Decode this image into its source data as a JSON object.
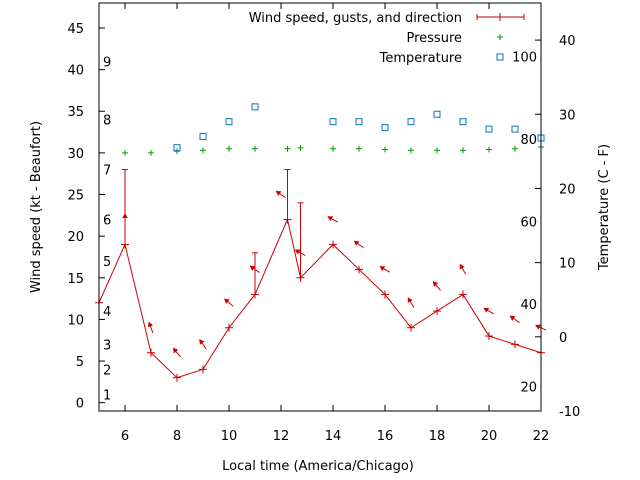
{
  "chart_data": {
    "type": "line",
    "xlabel": "Local time (America/Chicago)",
    "ylabel_left": "Wind speed (kt - Beaufort)",
    "ylabel_right": "Temperature (C - F)",
    "x_range": [
      5,
      22
    ],
    "x_ticks": [
      6,
      8,
      10,
      12,
      14,
      16,
      18,
      20,
      22
    ],
    "y_left_range": [
      -1,
      48
    ],
    "y_left_ticks": [
      0,
      5,
      10,
      15,
      20,
      25,
      30,
      35,
      40,
      45
    ],
    "y_right_range": [
      -10,
      45
    ],
    "y_right_ticks": [
      -10,
      0,
      10,
      20,
      30,
      40
    ],
    "beaufort_labels": [
      {
        "text": "1",
        "kt": 1
      },
      {
        "text": "2",
        "kt": 4
      },
      {
        "text": "3",
        "kt": 7
      },
      {
        "text": "4",
        "kt": 11
      },
      {
        "text": "5",
        "kt": 17
      },
      {
        "text": "6",
        "kt": 22
      },
      {
        "text": "7",
        "kt": 28
      },
      {
        "text": "8",
        "kt": 34
      },
      {
        "text": "9",
        "kt": 41
      }
    ],
    "fahrenheit_labels": [
      {
        "text": "20",
        "f": 20
      },
      {
        "text": "40",
        "f": 40
      },
      {
        "text": "60",
        "f": 60
      },
      {
        "text": "80",
        "f": 80
      },
      {
        "text": "100",
        "f": 100
      }
    ],
    "legend_position": "top-right",
    "series": [
      {
        "name": "Wind speed, gusts, and direction",
        "color": "#cc0000",
        "x": [
          5,
          6,
          7,
          8,
          9,
          10,
          11,
          12.25,
          12.75,
          14,
          15,
          16,
          17,
          18,
          19,
          20,
          21,
          22
        ],
        "values": [
          12,
          19,
          6,
          3,
          4,
          9,
          13,
          22,
          15,
          19,
          16,
          13,
          9,
          11,
          13,
          8,
          7,
          6
        ],
        "gusts": [
          null,
          28,
          null,
          null,
          null,
          null,
          18,
          28,
          24,
          null,
          null,
          null,
          null,
          null,
          null,
          null,
          null,
          null
        ],
        "direction_x": [
          6,
          7,
          8,
          9,
          10,
          11,
          12,
          12.75,
          14,
          15,
          16,
          17,
          18,
          19,
          20,
          21,
          22
        ],
        "direction_deg": [
          0,
          340,
          320,
          325,
          310,
          305,
          305,
          300,
          300,
          305,
          300,
          330,
          320,
          330,
          300,
          305,
          295
        ]
      },
      {
        "name": "Pressure",
        "color": "#009900",
        "x": [
          6,
          7,
          8,
          9,
          10,
          11,
          12.25,
          12.75,
          14,
          15,
          16,
          17,
          18,
          19,
          20,
          21,
          22
        ],
        "values": [
          30,
          30,
          30.2,
          30.3,
          30.5,
          30.5,
          30.5,
          30.6,
          30.5,
          30.5,
          30.4,
          30.3,
          30.3,
          30.3,
          30.4,
          30.5,
          30.7
        ]
      },
      {
        "name": "Temperature",
        "color": "#0077bb",
        "x": [
          8,
          9,
          10,
          11,
          14,
          15,
          16,
          17,
          18,
          19,
          20,
          21,
          22
        ],
        "values": [
          25.5,
          27,
          29,
          31,
          29,
          29,
          28.2,
          29,
          30,
          29,
          28,
          28,
          26.8
        ]
      }
    ]
  }
}
